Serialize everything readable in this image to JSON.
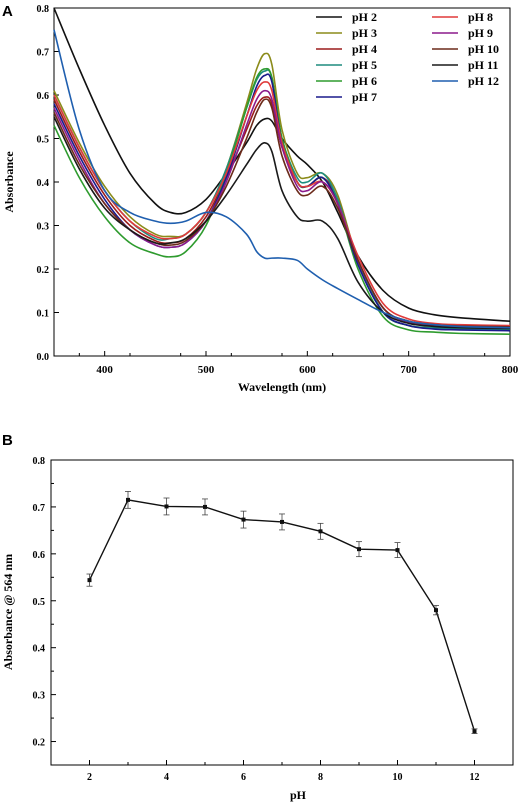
{
  "chart_data": [
    {
      "panel_label": "A",
      "type": "line",
      "xlabel": "Wavelength (nm)",
      "ylabel": "Absorbance",
      "xlim": [
        350,
        800
      ],
      "ylim": [
        0.0,
        0.8
      ],
      "x_ticks": [
        400,
        500,
        600,
        700,
        800
      ],
      "y_ticks": [
        0.0,
        0.1,
        0.2,
        0.3,
        0.4,
        0.5,
        0.6,
        0.7,
        0.8
      ],
      "grid": false,
      "legend_position": "top-right",
      "x": [
        350,
        375,
        400,
        425,
        450,
        465,
        480,
        500,
        520,
        540,
        550,
        558,
        565,
        575,
        590,
        600,
        615,
        630,
        650,
        675,
        700,
        725,
        750,
        800
      ],
      "series": [
        {
          "name": "pH 2",
          "color": "#111111",
          "values": [
            0.8,
            0.66,
            0.53,
            0.42,
            0.35,
            0.33,
            0.33,
            0.36,
            0.42,
            0.49,
            0.53,
            0.545,
            0.54,
            0.5,
            0.46,
            0.44,
            0.4,
            0.33,
            0.23,
            0.15,
            0.11,
            0.095,
            0.088,
            0.08
          ]
        },
        {
          "name": "pH 3",
          "color": "#8B8B1A",
          "values": [
            0.61,
            0.49,
            0.39,
            0.32,
            0.28,
            0.275,
            0.28,
            0.33,
            0.43,
            0.58,
            0.66,
            0.695,
            0.67,
            0.52,
            0.42,
            0.41,
            0.42,
            0.37,
            0.22,
            0.1,
            0.07,
            0.065,
            0.063,
            0.06
          ]
        },
        {
          "name": "pH 4",
          "color": "#9B1B1B",
          "values": [
            0.59,
            0.47,
            0.37,
            0.3,
            0.265,
            0.26,
            0.27,
            0.32,
            0.41,
            0.52,
            0.575,
            0.595,
            0.58,
            0.48,
            0.4,
            0.39,
            0.41,
            0.36,
            0.22,
            0.11,
            0.08,
            0.072,
            0.068,
            0.065
          ]
        },
        {
          "name": "pH 5",
          "color": "#1E8C7E",
          "values": [
            0.6,
            0.48,
            0.38,
            0.31,
            0.27,
            0.27,
            0.28,
            0.33,
            0.43,
            0.57,
            0.635,
            0.655,
            0.64,
            0.5,
            0.41,
            0.4,
            0.42,
            0.36,
            0.22,
            0.1,
            0.07,
            0.065,
            0.063,
            0.06
          ]
        },
        {
          "name": "pH 6",
          "color": "#2E9B2E",
          "values": [
            0.53,
            0.41,
            0.32,
            0.26,
            0.235,
            0.228,
            0.24,
            0.3,
            0.42,
            0.57,
            0.64,
            0.66,
            0.64,
            0.5,
            0.4,
            0.39,
            0.41,
            0.35,
            0.2,
            0.09,
            0.06,
            0.055,
            0.052,
            0.05
          ]
        },
        {
          "name": "pH 7",
          "color": "#1A1A8C",
          "values": [
            0.58,
            0.46,
            0.36,
            0.29,
            0.255,
            0.25,
            0.26,
            0.31,
            0.41,
            0.55,
            0.62,
            0.645,
            0.63,
            0.49,
            0.4,
            0.39,
            0.41,
            0.35,
            0.21,
            0.1,
            0.07,
            0.062,
            0.06,
            0.058
          ]
        },
        {
          "name": "pH 8",
          "color": "#E03A3A",
          "values": [
            0.6,
            0.48,
            0.38,
            0.31,
            0.275,
            0.27,
            0.28,
            0.33,
            0.42,
            0.55,
            0.61,
            0.63,
            0.61,
            0.49,
            0.4,
            0.39,
            0.4,
            0.35,
            0.23,
            0.12,
            0.085,
            0.075,
            0.072,
            0.07
          ]
        },
        {
          "name": "pH 9",
          "color": "#8B1A8B",
          "values": [
            0.57,
            0.45,
            0.35,
            0.29,
            0.255,
            0.25,
            0.26,
            0.31,
            0.4,
            0.53,
            0.59,
            0.61,
            0.59,
            0.48,
            0.39,
            0.38,
            0.4,
            0.35,
            0.22,
            0.11,
            0.078,
            0.07,
            0.067,
            0.065
          ]
        },
        {
          "name": "pH 10",
          "color": "#6B2A1A",
          "values": [
            0.56,
            0.44,
            0.35,
            0.29,
            0.26,
            0.255,
            0.265,
            0.31,
            0.39,
            0.5,
            0.56,
            0.59,
            0.57,
            0.46,
            0.38,
            0.37,
            0.39,
            0.34,
            0.22,
            0.11,
            0.08,
            0.072,
            0.069,
            0.067
          ]
        },
        {
          "name": "pH 11",
          "color": "#1A1A1A",
          "values": [
            0.55,
            0.43,
            0.34,
            0.29,
            0.26,
            0.26,
            0.27,
            0.31,
            0.37,
            0.44,
            0.475,
            0.49,
            0.47,
            0.38,
            0.32,
            0.31,
            0.31,
            0.27,
            0.17,
            0.1,
            0.075,
            0.068,
            0.065,
            0.063
          ]
        },
        {
          "name": "pH 12",
          "color": "#1F5FAF",
          "values": [
            0.75,
            0.52,
            0.38,
            0.33,
            0.31,
            0.305,
            0.31,
            0.33,
            0.32,
            0.28,
            0.24,
            0.225,
            0.225,
            0.225,
            0.22,
            0.2,
            0.175,
            0.155,
            0.13,
            0.1,
            0.08,
            0.072,
            0.068,
            0.065
          ]
        }
      ]
    },
    {
      "panel_label": "B",
      "type": "line",
      "xlabel": "pH",
      "ylabel": "Absorbance @ 564 nm",
      "xlim": [
        1,
        13
      ],
      "ylim": [
        0.15,
        0.8
      ],
      "x_ticks": [
        2,
        4,
        6,
        8,
        10,
        12
      ],
      "y_ticks": [
        0.2,
        0.3,
        0.4,
        0.5,
        0.6,
        0.7,
        0.8
      ],
      "grid": false,
      "series": [
        {
          "color": "#111111",
          "x": [
            2,
            3,
            4,
            5,
            6,
            7,
            8,
            9,
            10,
            11,
            12
          ],
          "values": [
            0.544,
            0.715,
            0.701,
            0.7,
            0.673,
            0.668,
            0.648,
            0.61,
            0.608,
            0.48,
            0.222
          ],
          "error": [
            0.013,
            0.018,
            0.018,
            0.017,
            0.018,
            0.017,
            0.017,
            0.016,
            0.016,
            0.01,
            0.005
          ]
        }
      ]
    }
  ]
}
